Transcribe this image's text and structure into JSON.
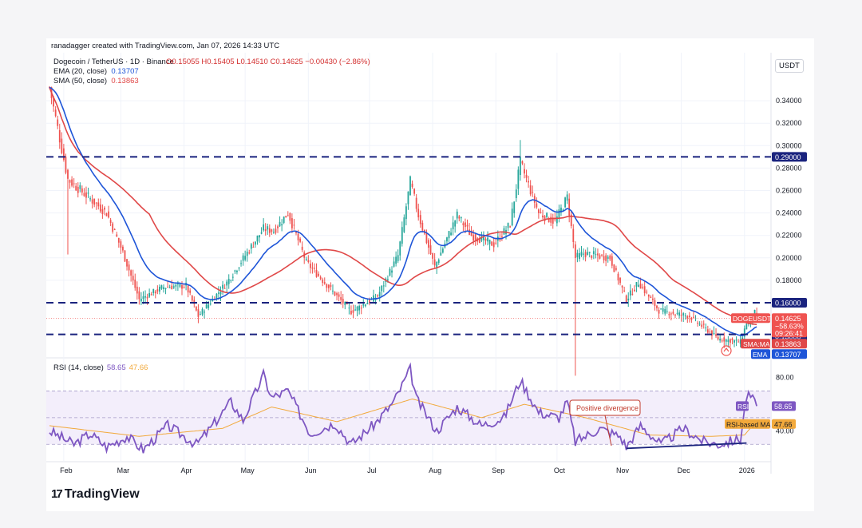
{
  "header": "ranadagger created with TradingView.com, Jan 07, 2026 14:33 UTC",
  "symbol_line": "Dogecoin / TetherUS · 1D · Binance",
  "ohlc_line": "O0.15055 H0.15405 L0.14510 C0.14625 −0.00430 (−2.86%)",
  "ema_legend": {
    "label": "EMA (20, close)",
    "value": "0.13707"
  },
  "sma_legend": {
    "label": "SMA (50, close)",
    "value": "0.13863"
  },
  "rsi_legend": {
    "label": "RSI (14, close)",
    "value": "58.65",
    "ma_value": "47.66"
  },
  "currency": "USDT",
  "brand": "TradingView",
  "colors": {
    "up": "#26a69a",
    "down": "#ef5350",
    "ema": "#1e55d8",
    "sma": "#e04848",
    "rsi": "#7e57c2",
    "rsi_ma": "#f2a93b",
    "level": "#1a237e"
  },
  "chart_data": [
    {
      "type": "candlestick",
      "title": "Dogecoin / TetherUS · 1D · Binance",
      "ylabel": "USDT",
      "ylim": [
        0.118,
        0.36
      ],
      "y_ticks": [
        "0.34000",
        "0.32000",
        "0.30000",
        "0.28000",
        "0.26000",
        "0.24000",
        "0.22000",
        "0.20000",
        "0.18000"
      ],
      "x_ticks": [
        "Feb",
        "Mar",
        "Apr",
        "May",
        "Jun",
        "Jul",
        "Aug",
        "Sep",
        "Oct",
        "Nov",
        "Dec",
        "2026"
      ],
      "levels": [
        {
          "label": "0.29000",
          "value": 0.29
        },
        {
          "label": "0.16000",
          "value": 0.16
        },
        {
          "label": "0.13000",
          "value": 0.13
        }
      ],
      "price_label": {
        "name": "DOGEUSDT",
        "value": "0.14625",
        "change": "−58.63%",
        "countdown": "09:26:41"
      },
      "sma_label": {
        "name": "SMA:MA",
        "value": "0.13863"
      },
      "ema_label": {
        "name": "EMA",
        "value": "0.13707"
      },
      "anchors": [
        {
          "date": "2025-01-25",
          "price": 0.352
        },
        {
          "date": "2025-02-03",
          "price": 0.27
        },
        {
          "date": "2025-02-08",
          "price": 0.262
        },
        {
          "date": "2025-02-22",
          "price": 0.24
        },
        {
          "date": "2025-03-02",
          "price": 0.205
        },
        {
          "date": "2025-03-10",
          "price": 0.163
        },
        {
          "date": "2025-03-22",
          "price": 0.174
        },
        {
          "date": "2025-04-02",
          "price": 0.175
        },
        {
          "date": "2025-04-08",
          "price": 0.148
        },
        {
          "date": "2025-04-22",
          "price": 0.178
        },
        {
          "date": "2025-05-10",
          "price": 0.226
        },
        {
          "date": "2025-05-15",
          "price": 0.224
        },
        {
          "date": "2025-05-22",
          "price": 0.24
        },
        {
          "date": "2025-05-31",
          "price": 0.196
        },
        {
          "date": "2025-06-22",
          "price": 0.152
        },
        {
          "date": "2025-07-05",
          "price": 0.166
        },
        {
          "date": "2025-07-15",
          "price": 0.202
        },
        {
          "date": "2025-07-21",
          "price": 0.268
        },
        {
          "date": "2025-07-25",
          "price": 0.238
        },
        {
          "date": "2025-08-02",
          "price": 0.192
        },
        {
          "date": "2025-08-13",
          "price": 0.238
        },
        {
          "date": "2025-08-20",
          "price": 0.22
        },
        {
          "date": "2025-08-31",
          "price": 0.212
        },
        {
          "date": "2025-09-08",
          "price": 0.23
        },
        {
          "date": "2025-09-13",
          "price": 0.285
        },
        {
          "date": "2025-09-22",
          "price": 0.24
        },
        {
          "date": "2025-09-30",
          "price": 0.232
        },
        {
          "date": "2025-10-06",
          "price": 0.254
        },
        {
          "date": "2025-10-10",
          "price": 0.2
        },
        {
          "date": "2025-10-14",
          "price": 0.204
        },
        {
          "date": "2025-10-27",
          "price": 0.2
        },
        {
          "date": "2025-11-04",
          "price": 0.163
        },
        {
          "date": "2025-11-10",
          "price": 0.178
        },
        {
          "date": "2025-11-20",
          "price": 0.153
        },
        {
          "date": "2025-12-05",
          "price": 0.148
        },
        {
          "date": "2025-12-19",
          "price": 0.128
        },
        {
          "date": "2025-12-30",
          "price": 0.125
        },
        {
          "date": "2026-01-02",
          "price": 0.142
        },
        {
          "date": "2026-01-06",
          "price": 0.151
        },
        {
          "date": "2026-01-07",
          "price": 0.14625
        }
      ],
      "spikes": [
        {
          "date": "2025-02-03",
          "low": 0.203
        },
        {
          "date": "2025-09-13",
          "high": 0.305
        },
        {
          "date": "2025-10-10",
          "low": 0.095
        }
      ]
    },
    {
      "type": "line",
      "title": "RSI (14, close)",
      "ylim": [
        20,
        90
      ],
      "y_ticks": [
        "80.00",
        "40.00"
      ],
      "band": [
        30,
        70
      ],
      "mid": 50,
      "series": [
        {
          "name": "RSI",
          "value_label": "58.65",
          "anchors": [
            {
              "date": "2025-01-25",
              "value": 40
            },
            {
              "date": "2025-02-06",
              "value": 30
            },
            {
              "date": "2025-02-14",
              "value": 38
            },
            {
              "date": "2025-02-22",
              "value": 28
            },
            {
              "date": "2025-03-04",
              "value": 36
            },
            {
              "date": "2025-03-12",
              "value": 26
            },
            {
              "date": "2025-03-24",
              "value": 44
            },
            {
              "date": "2025-04-07",
              "value": 30
            },
            {
              "date": "2025-04-14",
              "value": 42
            },
            {
              "date": "2025-04-24",
              "value": 62
            },
            {
              "date": "2025-04-30",
              "value": 48
            },
            {
              "date": "2025-05-10",
              "value": 82
            },
            {
              "date": "2025-05-14",
              "value": 65
            },
            {
              "date": "2025-05-22",
              "value": 70
            },
            {
              "date": "2025-06-02",
              "value": 38
            },
            {
              "date": "2025-06-14",
              "value": 46
            },
            {
              "date": "2025-06-22",
              "value": 30
            },
            {
              "date": "2025-07-04",
              "value": 46
            },
            {
              "date": "2025-07-13",
              "value": 62
            },
            {
              "date": "2025-07-21",
              "value": 86
            },
            {
              "date": "2025-07-24",
              "value": 64
            },
            {
              "date": "2025-08-03",
              "value": 40
            },
            {
              "date": "2025-08-13",
              "value": 58
            },
            {
              "date": "2025-08-25",
              "value": 44
            },
            {
              "date": "2025-09-05",
              "value": 50
            },
            {
              "date": "2025-09-13",
              "value": 78
            },
            {
              "date": "2025-09-22",
              "value": 54
            },
            {
              "date": "2025-10-02",
              "value": 50
            },
            {
              "date": "2025-10-06",
              "value": 62
            },
            {
              "date": "2025-10-10",
              "value": 32
            },
            {
              "date": "2025-10-22",
              "value": 42
            },
            {
              "date": "2025-11-01",
              "value": 36
            },
            {
              "date": "2025-11-04",
              "value": 28
            },
            {
              "date": "2025-11-11",
              "value": 44
            },
            {
              "date": "2025-11-21",
              "value": 30
            },
            {
              "date": "2025-12-02",
              "value": 42
            },
            {
              "date": "2025-12-12",
              "value": 32
            },
            {
              "date": "2025-12-19",
              "value": 30
            },
            {
              "date": "2025-12-30",
              "value": 34
            },
            {
              "date": "2026-01-02",
              "value": 66
            },
            {
              "date": "2026-01-04",
              "value": 66
            },
            {
              "date": "2026-01-07",
              "value": 58.65
            }
          ]
        },
        {
          "name": "RSI-based MA",
          "value_label": "47.66",
          "anchors": [
            {
              "date": "2025-01-25",
              "value": 44
            },
            {
              "date": "2025-03-10",
              "value": 36
            },
            {
              "date": "2025-04-20",
              "value": 42
            },
            {
              "date": "2025-05-14",
              "value": 58
            },
            {
              "date": "2025-06-15",
              "value": 47
            },
            {
              "date": "2025-07-22",
              "value": 64
            },
            {
              "date": "2025-08-25",
              "value": 50
            },
            {
              "date": "2025-09-15",
              "value": 60
            },
            {
              "date": "2025-10-15",
              "value": 50
            },
            {
              "date": "2025-11-15",
              "value": 37
            },
            {
              "date": "2025-12-15",
              "value": 36
            },
            {
              "date": "2026-01-01",
              "value": 37
            },
            {
              "date": "2026-01-07",
              "value": 47.66
            }
          ]
        }
      ],
      "annotation": {
        "text": "Positive divergence"
      },
      "divergence_line": [
        {
          "date": "2025-11-04",
          "value": 27
        },
        {
          "date": "2026-01-02",
          "value": 31
        }
      ]
    }
  ]
}
